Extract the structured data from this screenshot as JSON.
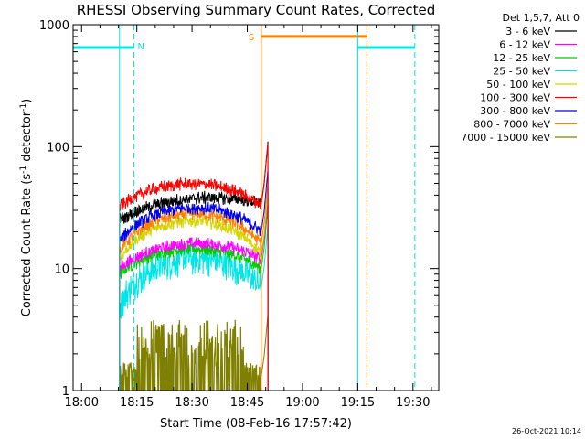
{
  "chart_data": {
    "type": "line",
    "title": "RHESSI Observing Summary Count Rates, Corrected",
    "xlabel": "Start Time (08-Feb-16 17:57:42)",
    "ylabel": "Corrected Count Rate (s",
    "ylabel_sup1": "-1",
    "ylabel_mid": " detector",
    "ylabel_sup2": "-1",
    "ylabel_end": ")",
    "yscale": "log",
    "ylim": [
      1,
      1000
    ],
    "xlim_minutes": [
      -2.3,
      97
    ],
    "x_ticks": [
      {
        "label": "18:00",
        "min": 0
      },
      {
        "label": "18:15",
        "min": 15
      },
      {
        "label": "18:30",
        "min": 30
      },
      {
        "label": "18:45",
        "min": 45
      },
      {
        "label": "19:00",
        "min": 60
      },
      {
        "label": "19:15",
        "min": 75
      },
      {
        "label": "19:30",
        "min": 90
      }
    ],
    "y_ticks": [
      {
        "label": "1",
        "value": 1
      },
      {
        "label": "10",
        "value": 10
      },
      {
        "label": "100",
        "value": 100
      },
      {
        "label": "1000",
        "value": 1000
      }
    ],
    "legend_header": "Det 1,5,7, Att 0",
    "legend_position": "right",
    "data_start_min": 10.3,
    "data_end_min": 48.8,
    "series": [
      {
        "name": "3 - 6 keV",
        "color": "#000000",
        "start": 25,
        "peak": 42,
        "end": 34
      },
      {
        "name": "6 - 12 keV",
        "color": "#ff00ff",
        "start": 10,
        "peak": 17,
        "end": 12
      },
      {
        "name": "12 - 25 keV",
        "color": "#00cc00",
        "start": 9,
        "peak": 15,
        "end": 10
      },
      {
        "name": "25 - 50 keV",
        "color": "#00e5e5",
        "start": 5,
        "peak": 13,
        "end": 7
      },
      {
        "name": "50 - 100 keV",
        "color": "#d4d400",
        "start": 12,
        "peak": 25,
        "end": 13
      },
      {
        "name": "100 - 300 keV",
        "color": "#ff0000",
        "start": 32,
        "peak": 50,
        "end": 33
      },
      {
        "name": "300 - 800 keV",
        "color": "#0000ee",
        "start": 17,
        "peak": 33,
        "end": 20
      },
      {
        "name": "800 - 7000 keV",
        "color": "#ff7f00",
        "start": 14,
        "peak": 29,
        "end": 16
      },
      {
        "name": "7000 - 15000 keV",
        "color": "#808000",
        "start": 1.2,
        "peak": 3,
        "end": 1.3
      }
    ],
    "night_markers": [
      {
        "label": "N",
        "start_min": -2.3,
        "end_min": 14.2,
        "level": 650,
        "color": "#00e5e5"
      },
      {
        "label": "",
        "start_min": 75.0,
        "end_min": 90.5,
        "level": 650,
        "color": "#00e5e5"
      }
    ],
    "saa_marker": {
      "label": "S",
      "start_min": 48.8,
      "end_min": 77.5,
      "level": 800,
      "color": "#ff7f00"
    },
    "vertical_lines": [
      {
        "min": -2.3,
        "color": "#00e5e5",
        "dash": false
      },
      {
        "min": 10.3,
        "color": "#00e5e5",
        "dash": false
      },
      {
        "min": 14.2,
        "color": "#00e5e5",
        "dash": true
      },
      {
        "min": 48.8,
        "color": "#ff7f00",
        "dash": false
      },
      {
        "min": 75.0,
        "color": "#00e5e5",
        "dash": false
      },
      {
        "min": 77.5,
        "color": "#ff7f00",
        "dash": true
      },
      {
        "min": 90.5,
        "color": "#00e5e5",
        "dash": true
      }
    ],
    "flare_spike": {
      "start_min": 48.8,
      "end_min": 50.6,
      "peak": 110
    }
  },
  "timestamp": "26-Oct-2021 10:14"
}
